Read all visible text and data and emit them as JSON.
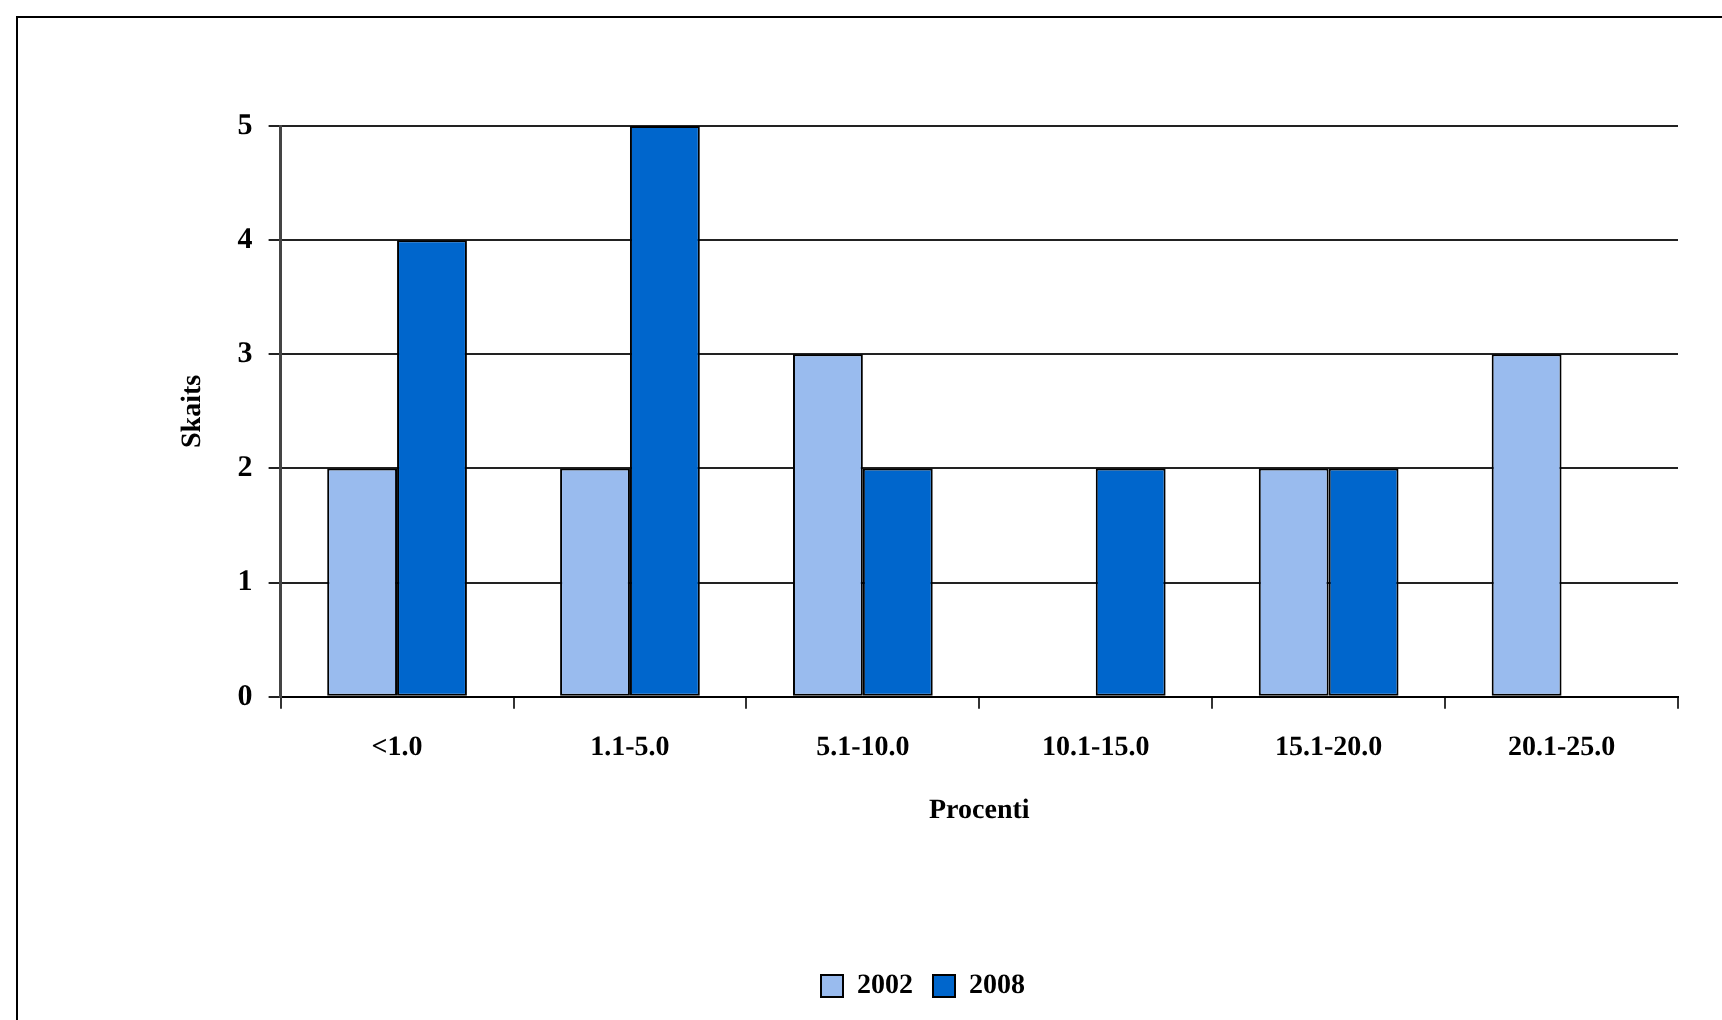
{
  "chart_data": {
    "type": "bar",
    "xlabel": "Procenti",
    "ylabel": "Skaits",
    "categories": [
      "<1.0",
      "1.1-5.0",
      "5.1-10.0",
      "10.1-15.0",
      "15.1-20.0",
      "20.1-25.0"
    ],
    "series": [
      {
        "name": "2002",
        "color": "#99bbee",
        "values": [
          2,
          2,
          3,
          0,
          2,
          3
        ]
      },
      {
        "name": "2008",
        "color": "#0066cc",
        "values": [
          4,
          5,
          2,
          2,
          2,
          0
        ]
      }
    ],
    "ylim": [
      0,
      5
    ],
    "yticks": [
      0,
      1,
      2,
      3,
      4,
      5
    ],
    "grid": "y",
    "legend": "bottom"
  }
}
